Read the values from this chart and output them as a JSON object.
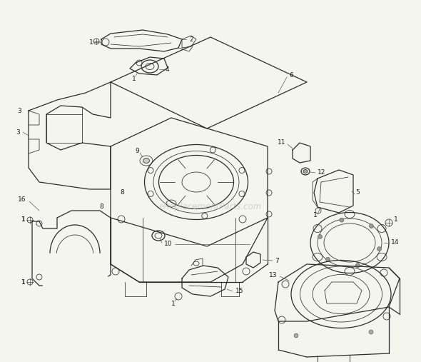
{
  "bg_color": "#f5f5f0",
  "line_color": "#2a2a2a",
  "label_color": "#1a1a1a",
  "watermark": "eReplacementParts.com",
  "watermark_color": "#b8b8b8",
  "fig_width": 5.9,
  "fig_height": 5.07,
  "dpi": 100,
  "lw_main": 0.9,
  "lw_thin": 0.55,
  "font_size": 6.5
}
